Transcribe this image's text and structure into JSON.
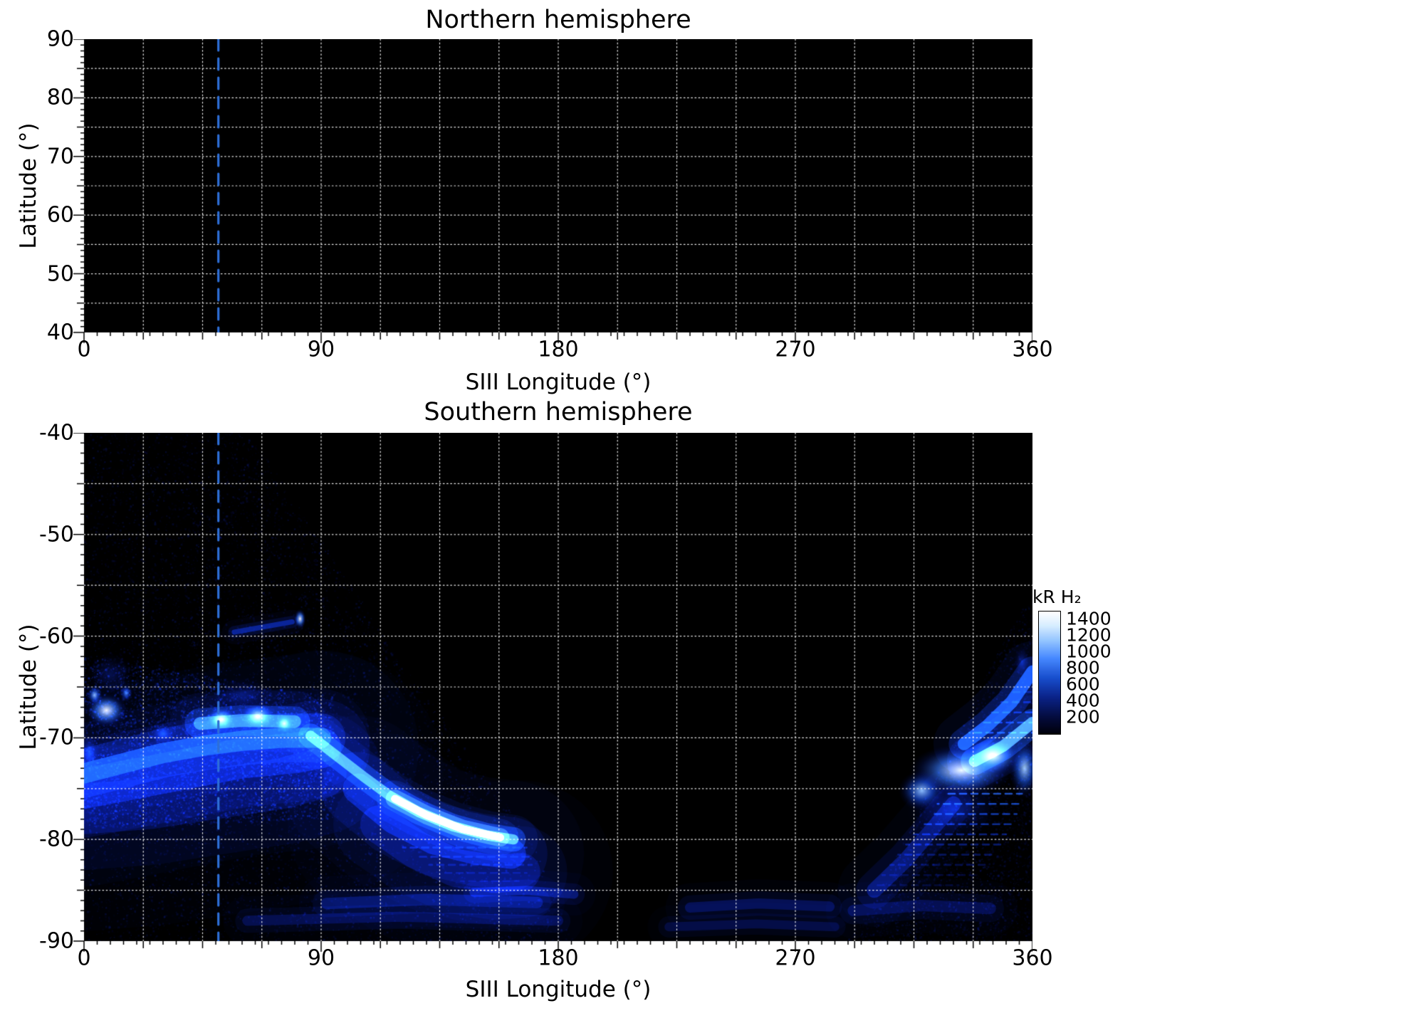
{
  "colors": {
    "panel_bg": "#000000",
    "grid": "#ffffff",
    "tick": "#000000",
    "marker_line": "#2e6fd8"
  },
  "chart_data": {
    "type": "heatmap",
    "panels": [
      {
        "id": "north",
        "title": "Northern hemisphere",
        "xlabel": "SIII Longitude (°)",
        "ylabel": "Latitude (°)",
        "xlim": [
          0,
          360
        ],
        "ylim": [
          40,
          90
        ],
        "x_ticks": [
          0,
          90,
          180,
          270,
          360
        ],
        "y_ticks": [
          90,
          80,
          70,
          60,
          50,
          40
        ],
        "grid_lon_step": 22.5,
        "grid_lat_step": 5,
        "marker_longitude": 51,
        "background_kr": 0,
        "features": []
      },
      {
        "id": "south",
        "title": "Southern hemisphere",
        "xlabel": "SIII Longitude (°)",
        "ylabel": "Latitude (°)",
        "xlim": [
          0,
          360
        ],
        "ylim": [
          -90,
          -40
        ],
        "x_ticks": [
          0,
          90,
          180,
          270,
          360
        ],
        "y_ticks": [
          -40,
          -50,
          -60,
          -70,
          -80,
          -90
        ],
        "grid_lon_step": 22.5,
        "grid_lat_step": 5,
        "marker_longitude": 51,
        "background_kr": 0,
        "features": [
          {
            "kind": "noise",
            "poly": [
              [
                0,
                -40
              ],
              [
                63,
                -40
              ],
              [
                122,
                -63
              ],
              [
                168,
                -79
              ],
              [
                186,
                -90
              ],
              [
                0,
                -90
              ]
            ],
            "count": 15000,
            "max_kr": 170
          },
          {
            "kind": "noise",
            "poly": [
              [
                360,
                -56
              ],
              [
                360,
                -90
              ],
              [
                290,
                -90
              ],
              [
                298,
                -87
              ],
              [
                352,
                -59
              ]
            ],
            "count": 8000,
            "max_kr": 150
          },
          {
            "kind": "noise",
            "poly": [
              [
                0,
                -62
              ],
              [
                95,
                -66
              ],
              [
                95,
                -78
              ],
              [
                0,
                -79
              ]
            ],
            "count": 9000,
            "max_kr": 380
          },
          {
            "kind": "glow",
            "path": [
              [
                0,
                -73.5
              ],
              [
                15,
                -72.5
              ],
              [
                30,
                -71.5
              ],
              [
                45,
                -70.8
              ],
              [
                60,
                -70.3
              ],
              [
                75,
                -70
              ],
              [
                90,
                -70
              ]
            ],
            "sigma_deg": 1.6,
            "kr": 620
          },
          {
            "kind": "glow",
            "path": [
              [
                0,
                -75
              ],
              [
                20,
                -74
              ],
              [
                40,
                -73
              ],
              [
                60,
                -72
              ],
              [
                80,
                -71.5
              ],
              [
                90,
                -71
              ]
            ],
            "sigma_deg": 3.2,
            "kr": 300
          },
          {
            "kind": "glow",
            "path": [
              [
                0,
                -77
              ],
              [
                25,
                -76.5
              ],
              [
                50,
                -75.5
              ],
              [
                75,
                -74.5
              ],
              [
                90,
                -73.5
              ]
            ],
            "sigma_deg": 4.0,
            "kr": 170
          },
          {
            "kind": "blob",
            "lon": 8.5,
            "lat": -67.3,
            "rx_deg": 8,
            "ry_deg": 1.7,
            "kr": 1500
          },
          {
            "kind": "blob",
            "lon": 4,
            "lat": -65.8,
            "rx_deg": 3,
            "ry_deg": 1.0,
            "kr": 1150
          },
          {
            "kind": "blob",
            "lon": 16,
            "lat": -65.6,
            "rx_deg": 2.5,
            "ry_deg": 0.9,
            "kr": 950
          },
          {
            "kind": "blob",
            "lon": 10,
            "lat": -63.8,
            "rx_deg": 9,
            "ry_deg": 2.2,
            "kr": 280
          },
          {
            "kind": "blob",
            "lon": 30,
            "lat": -69.6,
            "rx_deg": 5,
            "ry_deg": 1.2,
            "kr": 680
          },
          {
            "kind": "blob",
            "lon": 52,
            "lat": -68.2,
            "rx_deg": 6,
            "ry_deg": 1.3,
            "kr": 1500
          },
          {
            "kind": "blob",
            "lon": 66,
            "lat": -67.9,
            "rx_deg": 7,
            "ry_deg": 1.4,
            "kr": 1500
          },
          {
            "kind": "blob",
            "lon": 76,
            "lat": -68.6,
            "rx_deg": 4,
            "ry_deg": 1.1,
            "kr": 1300
          },
          {
            "kind": "glow",
            "path": [
              [
                44,
                -68.6
              ],
              [
                60,
                -68.3
              ],
              [
                80,
                -68.4
              ]
            ],
            "sigma_deg": 1.0,
            "kr": 820
          },
          {
            "kind": "blob",
            "lon": 60,
            "lat": -65.8,
            "rx_deg": 12,
            "ry_deg": 1.8,
            "kr": 260
          },
          {
            "kind": "blob",
            "lon": 2,
            "lat": -71.5,
            "rx_deg": 4,
            "ry_deg": 2.0,
            "kr": 600
          },
          {
            "kind": "blob",
            "lon": 82,
            "lat": -58.3,
            "rx_deg": 2.3,
            "ry_deg": 1.0,
            "kr": 1500
          },
          {
            "kind": "glow",
            "path": [
              [
                57,
                -59.6
              ],
              [
                68,
                -59.1
              ],
              [
                79,
                -58.6
              ]
            ],
            "sigma_deg": 0.4,
            "kr": 380
          },
          {
            "kind": "glow",
            "path": [
              [
                86,
                -69.8
              ],
              [
                96,
                -71.8
              ],
              [
                106,
                -73.8
              ],
              [
                116,
                -75.7
              ],
              [
                127,
                -77.3
              ],
              [
                140,
                -78.7
              ],
              [
                153,
                -79.6
              ],
              [
                163,
                -80
              ]
            ],
            "sigma_deg": 0.8,
            "kr": 950
          },
          {
            "kind": "glow",
            "path": [
              [
                118,
                -76
              ],
              [
                130,
                -77.6
              ],
              [
                144,
                -79
              ],
              [
                158,
                -79.8
              ]
            ],
            "sigma_deg": 0.6,
            "kr": 1400
          },
          {
            "kind": "glow",
            "path": [
              [
                104,
                -75
              ],
              [
                118,
                -78
              ],
              [
                133,
                -80
              ],
              [
                149,
                -81
              ],
              [
                162,
                -81.4
              ]
            ],
            "sigma_deg": 2.4,
            "kr": 330
          },
          {
            "kind": "glow",
            "path": [
              [
                112,
                -78.5
              ],
              [
                126,
                -81
              ],
              [
                141,
                -82.8
              ],
              [
                156,
                -83.4
              ],
              [
                166,
                -83.2
              ]
            ],
            "sigma_deg": 3.0,
            "kr": 190
          },
          {
            "kind": "striations",
            "rows": [
              {
                "lat": -80.8,
                "lon": [
                  121,
                  168
                ],
                "kr": 380
              },
              {
                "lat": -81.7,
                "lon": [
                  126,
                  170
                ],
                "kr": 310
              },
              {
                "lat": -82.5,
                "lon": [
                  131,
                  170
                ],
                "kr": 255
              },
              {
                "lat": -83.3,
                "lon": [
                  137,
                  168
                ],
                "kr": 205
              },
              {
                "lat": -84.1,
                "lon": [
                  143,
                  165
                ],
                "kr": 165
              }
            ]
          },
          {
            "kind": "glow",
            "path": [
              [
                92,
                -86.3
              ],
              [
                130,
                -85.9
              ],
              [
                172,
                -86.2
              ]
            ],
            "sigma_deg": 0.9,
            "kr": 250
          },
          {
            "kind": "glow",
            "path": [
              [
                62,
                -88
              ],
              [
                120,
                -87.6
              ],
              [
                180,
                -88
              ]
            ],
            "sigma_deg": 0.8,
            "kr": 195
          },
          {
            "kind": "glow",
            "path": [
              [
                148,
                -85.2
              ],
              [
                168,
                -85
              ],
              [
                186,
                -85.4
              ]
            ],
            "sigma_deg": 0.7,
            "kr": 280
          },
          {
            "kind": "glow",
            "path": [
              [
                230,
                -86.7
              ],
              [
                256,
                -86.3
              ],
              [
                283,
                -86.6
              ]
            ],
            "sigma_deg": 0.8,
            "kr": 210
          },
          {
            "kind": "glow",
            "path": [
              [
                292,
                -87
              ],
              [
                318,
                -86.5
              ],
              [
                344,
                -86.8
              ]
            ],
            "sigma_deg": 0.9,
            "kr": 200
          },
          {
            "kind": "glow",
            "path": [
              [
                222,
                -88.6
              ],
              [
                255,
                -88.3
              ],
              [
                285,
                -88.6
              ]
            ],
            "sigma_deg": 0.7,
            "kr": 150
          },
          {
            "kind": "striations",
            "rows": [
              {
                "lat": -65.5,
                "lon": [
                  352,
                  360
                ],
                "kr": 330
              },
              {
                "lat": -66.5,
                "lon": [
                  348,
                  360
                ],
                "kr": 400
              },
              {
                "lat": -67.5,
                "lon": [
                  344,
                  360
                ],
                "kr": 480
              },
              {
                "lat": -68.5,
                "lon": [
                  340,
                  360
                ],
                "kr": 550
              },
              {
                "lat": -69.5,
                "lon": [
                  336,
                  360
                ],
                "kr": 620
              }
            ]
          },
          {
            "kind": "striations",
            "rows": [
              {
                "lat": -75.5,
                "lon": [
                  327,
                  356
                ],
                "kr": 750
              },
              {
                "lat": -76.5,
                "lon": [
                  324,
                  355
                ],
                "kr": 700
              },
              {
                "lat": -77.5,
                "lon": [
                  321,
                  354
                ],
                "kr": 620
              },
              {
                "lat": -78.5,
                "lon": [
                  318,
                  352
                ],
                "kr": 540
              },
              {
                "lat": -79.5,
                "lon": [
                  315,
                  350
                ],
                "kr": 460
              },
              {
                "lat": -80.5,
                "lon": [
                  312,
                  348
                ],
                "kr": 390
              },
              {
                "lat": -81.5,
                "lon": [
                  309,
                  345
                ],
                "kr": 320
              },
              {
                "lat": -82.5,
                "lon": [
                  306,
                  342
                ],
                "kr": 260
              },
              {
                "lat": -83.5,
                "lon": [
                  303,
                  338
                ],
                "kr": 210
              },
              {
                "lat": -84.5,
                "lon": [
                  300,
                  332
                ],
                "kr": 170
              }
            ]
          },
          {
            "kind": "glow",
            "path": [
              [
                360,
                -63.5
              ],
              [
                352,
                -66.5
              ],
              [
                343,
                -68.8
              ],
              [
                334,
                -70.6
              ]
            ],
            "sigma_deg": 1.0,
            "kr": 700
          },
          {
            "kind": "glow",
            "path": [
              [
                360,
                -68.5
              ],
              [
                349,
                -70.8
              ],
              [
                338,
                -72.3
              ]
            ],
            "sigma_deg": 0.9,
            "kr": 950
          },
          {
            "kind": "glow",
            "path": [
              [
                300,
                -85
              ],
              [
                312,
                -82
              ],
              [
                322,
                -79
              ],
              [
                330,
                -76.5
              ]
            ],
            "sigma_deg": 1.2,
            "kr": 300
          },
          {
            "kind": "blob",
            "lon": 330,
            "lat": -77,
            "rx_deg": 18,
            "ry_deg": 3.0,
            "kr": 350
          },
          {
            "kind": "blob",
            "lon": 333,
            "lat": -73.2,
            "rx_deg": 20,
            "ry_deg": 2.6,
            "kr": 1500
          },
          {
            "kind": "blob",
            "lon": 345,
            "lat": -71.8,
            "rx_deg": 11,
            "ry_deg": 2.0,
            "kr": 1500
          },
          {
            "kind": "blob",
            "lon": 318,
            "lat": -75.2,
            "rx_deg": 9,
            "ry_deg": 2.0,
            "kr": 1150
          },
          {
            "kind": "blob",
            "lon": 357,
            "lat": -73,
            "rx_deg": 6,
            "ry_deg": 3.0,
            "kr": 1200
          },
          {
            "kind": "blob",
            "lon": 356,
            "lat": -62.5,
            "rx_deg": 3,
            "ry_deg": 1.5,
            "kr": 420
          }
        ]
      }
    ],
    "colorbar": {
      "label": "kR H₂",
      "range": [
        0,
        1500
      ],
      "ticks": [
        1400,
        1200,
        1000,
        800,
        600,
        400,
        200
      ]
    }
  }
}
